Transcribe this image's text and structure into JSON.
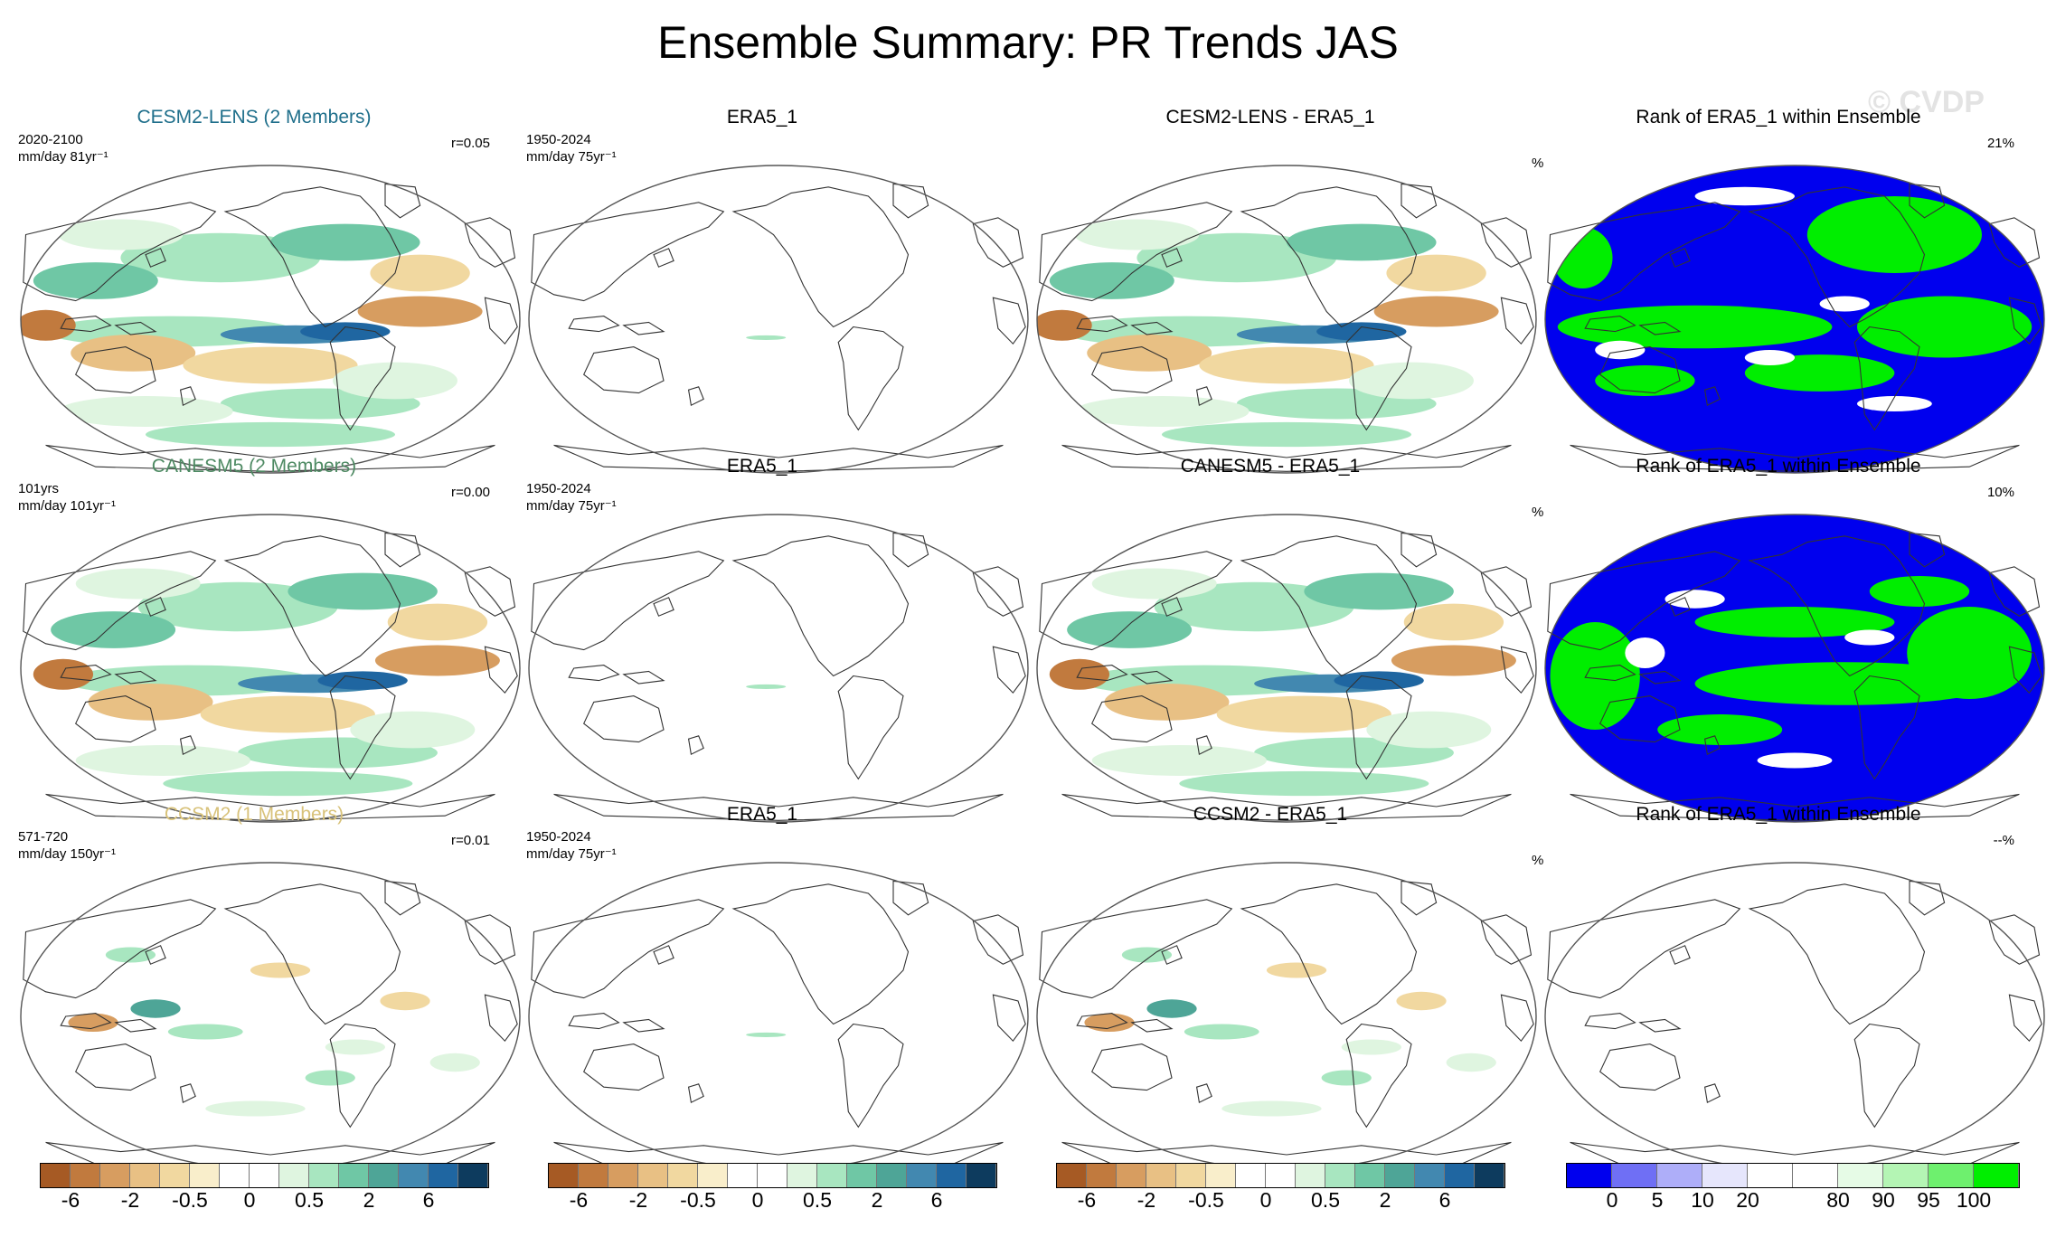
{
  "title": "Ensemble Summary: PR Trends JAS",
  "watermark": "© CVDP",
  "rows": [
    {
      "model": {
        "title": "CESM2-LENS (2 Members)",
        "title_color": "#1f6f8b",
        "years": "2020-2100",
        "units": "mm/day 81yr⁻¹",
        "r": "r=0.05"
      },
      "obs": {
        "title": "ERA5_1",
        "years": "1950-2024",
        "units": "mm/day 75yr⁻¹"
      },
      "diff": {
        "title": "CESM2-LENS - ERA5_1"
      },
      "rank": {
        "title": "Rank of ERA5_1 within Ensemble",
        "pct_unit": "%",
        "value": "21%",
        "filled": true
      }
    },
    {
      "model": {
        "title": "CANESM5 (2 Members)",
        "title_color": "#4e8a63",
        "years": "101yrs",
        "units": "mm/day 101yr⁻¹",
        "r": "r=0.00"
      },
      "obs": {
        "title": "ERA5_1",
        "years": "1950-2024",
        "units": "mm/day 75yr⁻¹"
      },
      "diff": {
        "title": "CANESM5 - ERA5_1"
      },
      "rank": {
        "title": "Rank of ERA5_1 within Ensemble",
        "pct_unit": "%",
        "value": "10%",
        "filled": true
      }
    },
    {
      "model": {
        "title": "CCSM2 (1 Members)",
        "title_color": "#d8c27a",
        "years": "571-720",
        "units": "mm/day 150yr⁻¹",
        "r": "r=0.01"
      },
      "obs": {
        "title": "ERA5_1",
        "years": "1950-2024",
        "units": "mm/day 75yr⁻¹"
      },
      "diff": {
        "title": "CCSM2 - ERA5_1"
      },
      "rank": {
        "title": "Rank of ERA5_1 within Ensemble",
        "pct_unit": "%",
        "value": "--%",
        "filled": false
      }
    }
  ],
  "chart_data": {
    "type": "heatmap",
    "title": "Ensemble Summary: PR Trends JAS",
    "trend_colorbar": {
      "units": "mm/day",
      "colors": [
        "#a65a24",
        "#c17a3e",
        "#d79d60",
        "#e8c084",
        "#f1d8a0",
        "#f9eecb",
        "#ffffff",
        "#ffffff",
        "#dff5e0",
        "#a8e6c0",
        "#6fc7a5",
        "#4ea597",
        "#4288b0",
        "#1f66a1",
        "#0d3b5e"
      ],
      "tick_labels": [
        "-6",
        "-2",
        "-0.5",
        "0",
        "0.5",
        "2",
        "6"
      ]
    },
    "rank_colorbar": {
      "units": "%",
      "colors": [
        "#0000ee",
        "#6f6ff5",
        "#aeaef9",
        "#e6e6fc",
        "#ffffff",
        "#ffffff",
        "#e6fbe6",
        "#b4f5b4",
        "#6ef06e",
        "#00ee00"
      ],
      "tick_labels": [
        "0",
        "5",
        "10",
        "20",
        "80",
        "90",
        "95",
        "100"
      ]
    }
  }
}
